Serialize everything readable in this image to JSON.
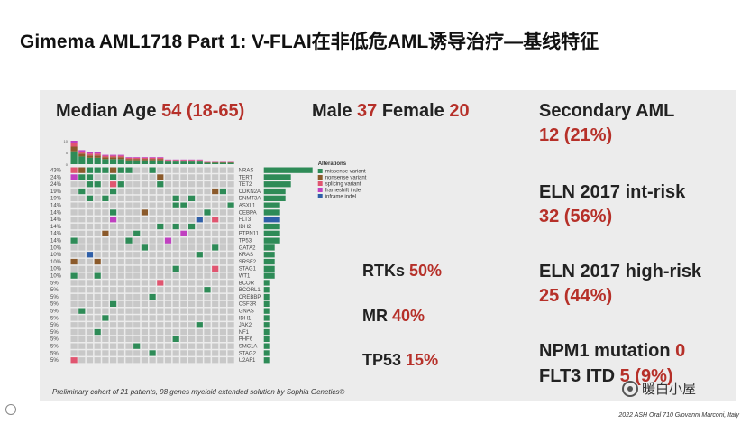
{
  "title": "Gimema AML1718 Part 1: V-FLAI在非低危AML诱导治疗—基线特征",
  "median_age": {
    "label": "Median Age",
    "value": "54 (18-65)"
  },
  "sex": {
    "male_label": "Male",
    "male_value": "37",
    "female_label": "Female",
    "female_value": "20"
  },
  "secondary_aml": {
    "label": "Secondary AML",
    "value": "12 (21%)"
  },
  "eln_int": {
    "label": "ELN 2017 int-risk",
    "value": "32 (56%)"
  },
  "eln_high": {
    "label": "ELN 2017 high-risk",
    "value": "25 (44%)"
  },
  "npm1": {
    "label": "NPM1 mutation",
    "value": "0"
  },
  "flt3": {
    "label": "FLT3 ITD",
    "value": "5 (9%)"
  },
  "rtks": {
    "label": "RTKs",
    "value": "50%"
  },
  "mr": {
    "label": "MR",
    "value": "40%"
  },
  "tp53": {
    "label": "TP53",
    "value": "15%"
  },
  "footnote": "Preliminary cohort of 21 patients, 98 genes myeloid extended solution by Sophia Genetics®",
  "credit": "2022 ASH Oral 710 Giovanni Marconi, Italy",
  "watermark": "暖白小屋",
  "colors": {
    "missense": "#2e8b57",
    "nonsense": "#8b5a2b",
    "splicing": "#e05570",
    "frameshift": "#c040c0",
    "inframe": "#2f5fa8",
    "empty": "#c8c8c8",
    "accent_red": "#b63029"
  },
  "oncoprint": {
    "legend_title": "Alterations",
    "legend": [
      {
        "name": "missense variant",
        "color": "#2e8b57"
      },
      {
        "name": "nonsense variant",
        "color": "#8b5a2b"
      },
      {
        "name": "splicing variant",
        "color": "#e05570"
      },
      {
        "name": "frameshift indel",
        "color": "#c040c0"
      },
      {
        "name": "inframe indel",
        "color": "#2f5fa8"
      }
    ],
    "genes": [
      {
        "gene": "NRAS",
        "pct": "43%",
        "count": 9
      },
      {
        "gene": "TERT",
        "pct": "24%",
        "count": 5
      },
      {
        "gene": "TET2",
        "pct": "24%",
        "count": 5
      },
      {
        "gene": "CDKN2A",
        "pct": "19%",
        "count": 4
      },
      {
        "gene": "DNMT3A",
        "pct": "19%",
        "count": 4
      },
      {
        "gene": "ASXL1",
        "pct": "14%",
        "count": 3
      },
      {
        "gene": "CEBPA",
        "pct": "14%",
        "count": 3
      },
      {
        "gene": "FLT3",
        "pct": "14%",
        "count": 3
      },
      {
        "gene": "IDH2",
        "pct": "14%",
        "count": 3
      },
      {
        "gene": "PTPN11",
        "pct": "14%",
        "count": 3
      },
      {
        "gene": "TP53",
        "pct": "14%",
        "count": 3
      },
      {
        "gene": "GATA2",
        "pct": "10%",
        "count": 2
      },
      {
        "gene": "KRAS",
        "pct": "10%",
        "count": 2
      },
      {
        "gene": "SRSF2",
        "pct": "10%",
        "count": 2
      },
      {
        "gene": "STAG1",
        "pct": "10%",
        "count": 2
      },
      {
        "gene": "WT1",
        "pct": "10%",
        "count": 2
      },
      {
        "gene": "BCOR",
        "pct": "5%",
        "count": 1
      },
      {
        "gene": "BCORL1",
        "pct": "5%",
        "count": 1
      },
      {
        "gene": "CREBBP",
        "pct": "5%",
        "count": 1
      },
      {
        "gene": "CSF3R",
        "pct": "5%",
        "count": 1
      },
      {
        "gene": "GNAS",
        "pct": "5%",
        "count": 1
      },
      {
        "gene": "IDH1",
        "pct": "5%",
        "count": 1
      },
      {
        "gene": "JAK2",
        "pct": "5%",
        "count": 1
      },
      {
        "gene": "NF1",
        "pct": "5%",
        "count": 1
      },
      {
        "gene": "PHF6",
        "pct": "5%",
        "count": 1
      },
      {
        "gene": "SMC1A",
        "pct": "5%",
        "count": 1
      },
      {
        "gene": "STAG2",
        "pct": "5%",
        "count": 1
      },
      {
        "gene": "U2AF1",
        "pct": "5%",
        "count": 1
      }
    ],
    "per_patient_counts": [
      10,
      6,
      5,
      5,
      4,
      4,
      4,
      3,
      3,
      3,
      3,
      3,
      2,
      2,
      2,
      2,
      2,
      1,
      1,
      1,
      1
    ]
  }
}
